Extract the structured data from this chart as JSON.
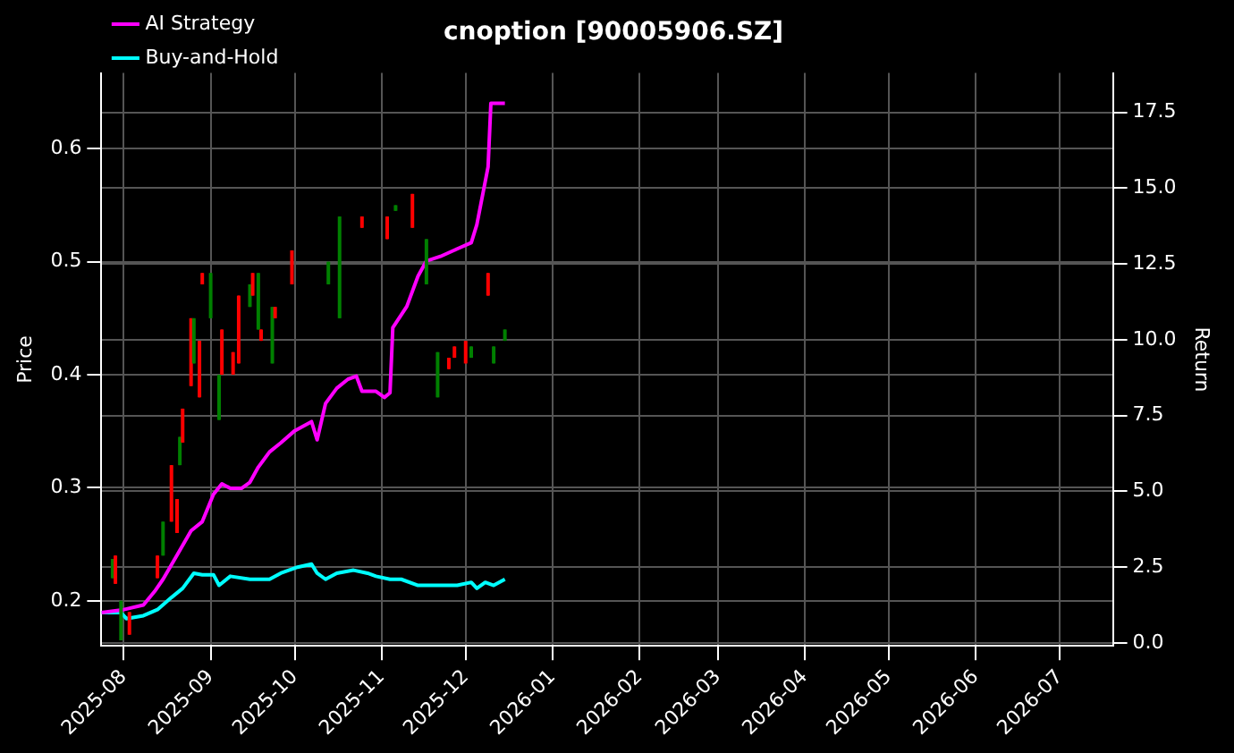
{
  "chart_data": {
    "type": "candlestick",
    "title": "cnoption [90005906.SZ]",
    "ylabel": "Price",
    "y2label": "Return",
    "x": [
      "2025-07-28",
      "2025-07-29",
      "2025-07-31",
      "2025-08-03",
      "2025-08-13",
      "2025-08-15",
      "2025-08-18",
      "2025-08-20",
      "2025-08-21",
      "2025-08-22",
      "2025-08-25",
      "2025-08-26",
      "2025-08-28",
      "2025-08-29",
      "2025-09-01",
      "2025-09-04",
      "2025-09-05",
      "2025-09-09",
      "2025-09-11",
      "2025-09-15",
      "2025-09-16",
      "2025-09-18",
      "2025-09-19",
      "2025-09-23",
      "2025-09-24",
      "2025-09-30",
      "2025-10-13",
      "2025-10-17",
      "2025-10-25",
      "2025-11-03",
      "2025-11-06",
      "2025-11-12",
      "2025-11-17",
      "2025-11-21",
      "2025-11-25",
      "2025-11-27",
      "2025-12-01",
      "2025-12-03",
      "2025-12-09",
      "2025-12-11",
      "2025-12-15"
    ],
    "ohlc": [
      [
        0.22,
        0.237,
        0.22,
        0.237
      ],
      [
        0.24,
        0.24,
        0.215,
        0.215
      ],
      [
        0.165,
        0.2,
        0.165,
        0.2
      ],
      [
        0.19,
        0.19,
        0.17,
        0.17
      ],
      [
        0.24,
        0.24,
        0.22,
        0.22
      ],
      [
        0.24,
        0.27,
        0.24,
        0.27
      ],
      [
        0.32,
        0.32,
        0.27,
        0.27
      ],
      [
        0.29,
        0.29,
        0.26,
        0.26
      ],
      [
        0.32,
        0.345,
        0.32,
        0.345
      ],
      [
        0.37,
        0.37,
        0.34,
        0.34
      ],
      [
        0.45,
        0.45,
        0.39,
        0.39
      ],
      [
        0.41,
        0.45,
        0.41,
        0.45
      ],
      [
        0.43,
        0.43,
        0.38,
        0.38
      ],
      [
        0.49,
        0.49,
        0.48,
        0.48
      ],
      [
        0.45,
        0.49,
        0.45,
        0.49
      ],
      [
        0.36,
        0.4,
        0.36,
        0.4
      ],
      [
        0.44,
        0.44,
        0.4,
        0.4
      ],
      [
        0.42,
        0.42,
        0.4,
        0.4
      ],
      [
        0.47,
        0.47,
        0.41,
        0.41
      ],
      [
        0.46,
        0.48,
        0.46,
        0.48
      ],
      [
        0.49,
        0.49,
        0.47,
        0.47
      ],
      [
        0.44,
        0.49,
        0.44,
        0.49
      ],
      [
        0.44,
        0.44,
        0.43,
        0.43
      ],
      [
        0.41,
        0.46,
        0.41,
        0.46
      ],
      [
        0.46,
        0.46,
        0.45,
        0.45
      ],
      [
        0.51,
        0.51,
        0.48,
        0.48
      ],
      [
        0.48,
        0.5,
        0.48,
        0.5
      ],
      [
        0.45,
        0.54,
        0.45,
        0.54
      ],
      [
        0.54,
        0.54,
        0.53,
        0.53
      ],
      [
        0.54,
        0.54,
        0.52,
        0.52
      ],
      [
        0.545,
        0.55,
        0.545,
        0.55
      ],
      [
        0.56,
        0.56,
        0.53,
        0.53
      ],
      [
        0.48,
        0.52,
        0.48,
        0.52
      ],
      [
        0.38,
        0.42,
        0.38,
        0.42
      ],
      [
        0.415,
        0.415,
        0.405,
        0.405
      ],
      [
        0.425,
        0.425,
        0.415,
        0.415
      ],
      [
        0.43,
        0.43,
        0.41,
        0.41
      ],
      [
        0.415,
        0.425,
        0.415,
        0.425
      ],
      [
        0.49,
        0.49,
        0.47,
        0.47
      ],
      [
        0.41,
        0.425,
        0.41,
        0.425
      ],
      [
        0.43,
        0.44,
        0.43,
        0.44
      ]
    ],
    "colors": [
      "#008000",
      "#ff0000",
      "#008000",
      "#ff0000",
      "#ff0000",
      "#008000",
      "#ff0000",
      "#ff0000",
      "#008000",
      "#ff0000",
      "#ff0000",
      "#008000",
      "#ff0000",
      "#ff0000",
      "#008000",
      "#008000",
      "#ff0000",
      "#ff0000",
      "#ff0000",
      "#008000",
      "#ff0000",
      "#008000",
      "#ff0000",
      "#008000",
      "#ff0000",
      "#ff0000",
      "#008000",
      "#008000",
      "#ff0000",
      "#ff0000",
      "#008000",
      "#ff0000",
      "#008000",
      "#008000",
      "#ff0000",
      "#ff0000",
      "#ff0000",
      "#008000",
      "#ff0000",
      "#008000",
      "#008000"
    ],
    "series": [
      {
        "name": "AI Strategy",
        "type": "line",
        "axis": "y2",
        "color": "#ff00ff",
        "x": [
          "2025-07-24",
          "2025-08-01",
          "2025-08-08",
          "2025-08-12",
          "2025-08-15",
          "2025-08-20",
          "2025-08-25",
          "2025-08-29",
          "2025-09-02",
          "2025-09-05",
          "2025-09-08",
          "2025-09-12",
          "2025-09-15",
          "2025-09-18",
          "2025-09-22",
          "2025-09-26",
          "2025-10-01",
          "2025-10-07",
          "2025-10-09",
          "2025-10-12",
          "2025-10-16",
          "2025-10-20",
          "2025-10-23",
          "2025-10-25",
          "2025-10-30",
          "2025-11-02",
          "2025-11-04",
          "2025-11-05",
          "2025-11-10",
          "2025-11-14",
          "2025-11-17",
          "2025-11-22",
          "2025-11-28",
          "2025-12-03",
          "2025-12-05",
          "2025-12-09",
          "2025-12-10",
          "2025-12-15"
        ],
        "values": [
          1.0,
          1.1,
          1.25,
          1.7,
          2.1,
          2.9,
          3.7,
          4.0,
          4.9,
          5.25,
          5.1,
          5.1,
          5.3,
          5.8,
          6.3,
          6.6,
          7.0,
          7.3,
          6.7,
          7.9,
          8.4,
          8.7,
          8.8,
          8.3,
          8.3,
          8.1,
          8.25,
          10.4,
          11.1,
          12.1,
          12.6,
          12.75,
          13.0,
          13.2,
          13.8,
          15.7,
          17.8,
          17.8
        ]
      },
      {
        "name": "Buy-and-Hold",
        "type": "line",
        "axis": "y2",
        "color": "#00ffff",
        "x": [
          "2025-07-24",
          "2025-07-31",
          "2025-08-02",
          "2025-08-08",
          "2025-08-13",
          "2025-08-18",
          "2025-08-22",
          "2025-08-26",
          "2025-08-29",
          "2025-09-02",
          "2025-09-04",
          "2025-09-08",
          "2025-09-15",
          "2025-09-22",
          "2025-09-26",
          "2025-10-02",
          "2025-10-07",
          "2025-10-09",
          "2025-10-12",
          "2025-10-16",
          "2025-10-22",
          "2025-10-27",
          "2025-10-30",
          "2025-11-04",
          "2025-11-08",
          "2025-11-14",
          "2025-11-20",
          "2025-11-28",
          "2025-12-03",
          "2025-12-05",
          "2025-12-08",
          "2025-12-11",
          "2025-12-15"
        ],
        "values": [
          1.0,
          1.0,
          0.8,
          0.9,
          1.1,
          1.5,
          1.8,
          2.3,
          2.25,
          2.25,
          1.9,
          2.2,
          2.1,
          2.1,
          2.3,
          2.5,
          2.6,
          2.3,
          2.1,
          2.3,
          2.4,
          2.3,
          2.2,
          2.1,
          2.1,
          1.9,
          1.9,
          1.9,
          2.0,
          1.8,
          2.0,
          1.9,
          2.1
        ]
      }
    ],
    "xlim": [
      "2025-07-24",
      "2026-07-20"
    ],
    "xticks": [
      "2025-08",
      "2025-09",
      "2025-10",
      "2025-11",
      "2025-12",
      "2026-01",
      "2026-02",
      "2026-03",
      "2026-04",
      "2026-05",
      "2026-06",
      "2026-07"
    ],
    "ylim": [
      0.16,
      0.667
    ],
    "yticks": [
      0.2,
      0.3,
      0.4,
      0.5,
      0.6
    ],
    "y2lim": [
      -0.1,
      18.8
    ],
    "y2ticks": [
      {
        "value": 0,
        "label": "0.0"
      },
      {
        "value": 2.5,
        "label": "2.5"
      },
      {
        "value": 5,
        "label": "5.0"
      },
      {
        "value": 7.5,
        "label": "7.5"
      },
      {
        "value": 10,
        "label": "10.0"
      },
      {
        "value": 12.5,
        "label": "12.5"
      },
      {
        "value": 15,
        "label": "15.0"
      },
      {
        "value": 17.5,
        "label": "17.5"
      }
    ],
    "grid": true,
    "legend": "top left"
  }
}
